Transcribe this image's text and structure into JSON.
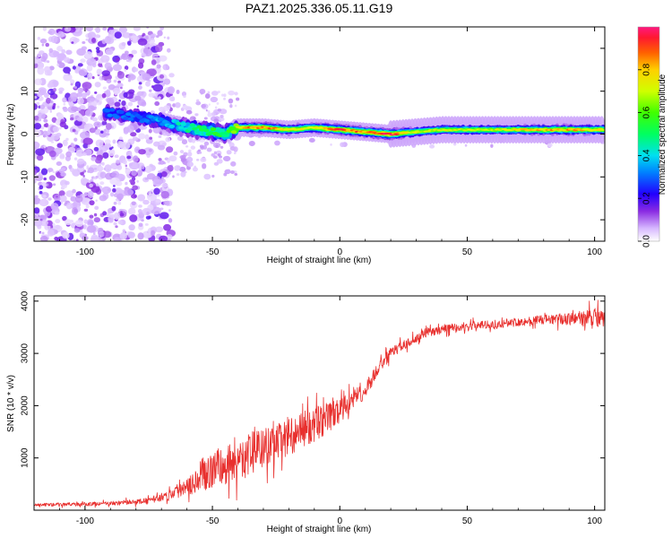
{
  "figure_title": "PAZ1.2025.336.05.11.G19",
  "chart_data": [
    {
      "type": "heatmap",
      "title": "PAZ1.2025.336.05.11.G19",
      "xlabel": "Height of straight line (km)",
      "ylabel": "Frequency (Hz)",
      "xlim": [
        -120,
        104
      ],
      "ylim": [
        -25,
        25
      ],
      "xticks": [
        -100,
        -50,
        0,
        50,
        100
      ],
      "yticks": [
        -20,
        -10,
        0,
        10,
        20
      ],
      "xtick_labels": [
        "-100",
        "-50",
        "0",
        "50",
        "100"
      ],
      "ytick_labels": [
        "-20",
        "-10",
        "0",
        "10",
        "20"
      ],
      "colorbar": {
        "label": "Normalized spectral amplitude",
        "range": [
          0,
          1
        ],
        "ticks": [
          0.0,
          0.2,
          0.4,
          0.6,
          0.8
        ],
        "tick_labels": [
          "0.0",
          "0.2",
          "0.4",
          "0.6",
          "0.8"
        ]
      },
      "ridge": {
        "x": [
          -90,
          -80,
          -70,
          -60,
          -50,
          -45,
          -40,
          -30,
          -20,
          -10,
          0,
          10,
          20,
          30,
          40,
          50,
          60,
          70,
          80,
          90,
          100
        ],
        "freq": [
          5,
          4,
          3,
          1.5,
          0.5,
          0,
          1.5,
          1.5,
          1,
          1.5,
          1,
          0.5,
          0,
          0.5,
          1,
          1,
          1,
          1,
          1,
          1,
          1
        ],
        "amplitude": [
          0.3,
          0.3,
          0.35,
          0.45,
          0.55,
          0.5,
          0.75,
          0.9,
          0.75,
          0.75,
          0.9,
          0.85,
          0.95,
          0.7,
          0.7,
          0.7,
          0.7,
          0.75,
          0.8,
          0.8,
          0.75
        ]
      }
    },
    {
      "type": "line",
      "xlabel": "Height of straight line (km)",
      "ylabel": "SNR (10 * v/v)",
      "xlim": [
        -120,
        104
      ],
      "ylim": [
        0,
        4100
      ],
      "xticks": [
        -100,
        -50,
        0,
        50,
        100
      ],
      "yticks": [
        1000,
        2000,
        3000,
        4000
      ],
      "xtick_labels": [
        "-100",
        "-50",
        "0",
        "50",
        "100"
      ],
      "ytick_labels": [
        "1000",
        "2000",
        "3000",
        "4000"
      ],
      "color": "#e8302e",
      "series": [
        {
          "name": "SNR",
          "x": [
            -120,
            -110,
            -100,
            -90,
            -80,
            -75,
            -70,
            -65,
            -60,
            -55,
            -50,
            -45,
            -40,
            -35,
            -30,
            -25,
            -20,
            -15,
            -10,
            -5,
            0,
            5,
            10,
            15,
            20,
            25,
            30,
            35,
            40,
            45,
            50,
            55,
            60,
            65,
            70,
            75,
            80,
            85,
            90,
            95,
            100,
            104
          ],
          "mean": [
            100,
            110,
            115,
            130,
            160,
            185,
            250,
            330,
            500,
            650,
            780,
            860,
            950,
            1080,
            1180,
            1280,
            1400,
            1520,
            1620,
            1760,
            1900,
            2100,
            2300,
            2700,
            3000,
            3150,
            3300,
            3400,
            3450,
            3500,
            3520,
            3540,
            3560,
            3580,
            3600,
            3620,
            3640,
            3650,
            3660,
            3680,
            3700,
            3600
          ],
          "spread": [
            40,
            40,
            45,
            50,
            60,
            70,
            100,
            150,
            250,
            380,
            450,
            480,
            520,
            500,
            480,
            460,
            440,
            420,
            400,
            380,
            300,
            220,
            200,
            170,
            140,
            120,
            110,
            100,
            100,
            100,
            100,
            100,
            100,
            100,
            100,
            110,
            120,
            130,
            150,
            180,
            220,
            250
          ]
        }
      ]
    }
  ]
}
